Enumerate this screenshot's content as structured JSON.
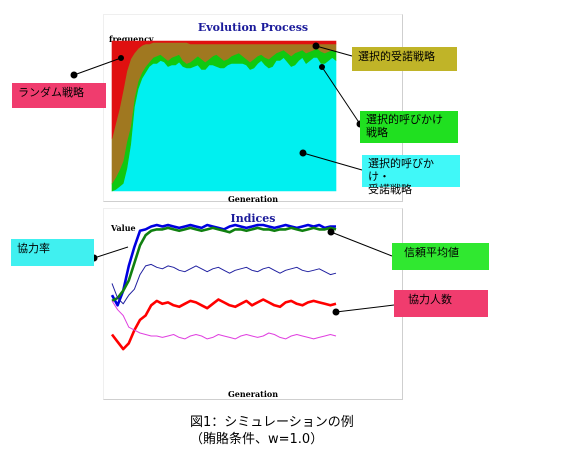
{
  "chart_data": [
    {
      "type": "area",
      "title": "Evolution Process",
      "ylabel": "frequency",
      "xlabel": "Generation",
      "ylim": [
        0,
        1
      ],
      "series": [
        {
          "name": "ランダム戦略",
          "color": "#e01010",
          "values": [
            0.65,
            0.55,
            0.45,
            0.33,
            0.2,
            0.12,
            0.08,
            0.05,
            0.03,
            0.02,
            0.02,
            0.01,
            0.01,
            0.01,
            0.01,
            0.01,
            0.01,
            0.01,
            0.01,
            0.01,
            0.01,
            0.02,
            0.02,
            0.02,
            0.02,
            0.02,
            0.02,
            0.02,
            0.02,
            0.02,
            0.02,
            0.02,
            0.02,
            0.02,
            0.02,
            0.02,
            0.02,
            0.02,
            0.02,
            0.02,
            0.02,
            0.02,
            0.02,
            0.02,
            0.02,
            0.02,
            0.02,
            0.02,
            0.02,
            0.02,
            0.02,
            0.02,
            0.02,
            0.02,
            0.02,
            0.02,
            0.02,
            0.02,
            0.02,
            0.02,
            0.02
          ]
        },
        {
          "name": "選択的受諾戦略",
          "color": "#a07820",
          "values": [
            0.3,
            0.36,
            0.41,
            0.47,
            0.47,
            0.45,
            0.3,
            0.22,
            0.18,
            0.15,
            0.12,
            0.1,
            0.09,
            0.08,
            0.1,
            0.12,
            0.1,
            0.09,
            0.08,
            0.12,
            0.14,
            0.12,
            0.1,
            0.08,
            0.1,
            0.12,
            0.1,
            0.08,
            0.07,
            0.09,
            0.11,
            0.1,
            0.08,
            0.07,
            0.06,
            0.08,
            0.1,
            0.12,
            0.1,
            0.08,
            0.07,
            0.09,
            0.1,
            0.08,
            0.06,
            0.05,
            0.04,
            0.06,
            0.08,
            0.06,
            0.05,
            0.04,
            0.06,
            0.05,
            0.04,
            0.03,
            0.05,
            0.06,
            0.05,
            0.04,
            0.05
          ]
        },
        {
          "name": "選択的呼びかけ戦略",
          "color": "#10c810",
          "values": [
            0.05,
            0.08,
            0.11,
            0.15,
            0.18,
            0.12,
            0.06,
            0.05,
            0.04,
            0.04,
            0.03,
            0.04,
            0.05,
            0.04,
            0.03,
            0.04,
            0.05,
            0.06,
            0.05,
            0.04,
            0.03,
            0.04,
            0.05,
            0.06,
            0.07,
            0.05,
            0.04,
            0.06,
            0.08,
            0.07,
            0.05,
            0.04,
            0.05,
            0.06,
            0.07,
            0.05,
            0.04,
            0.05,
            0.06,
            0.05,
            0.04,
            0.05,
            0.06,
            0.07,
            0.05,
            0.06,
            0.05,
            0.06,
            0.07,
            0.08,
            0.06,
            0.05,
            0.07,
            0.06,
            0.05,
            0.06,
            0.08,
            0.07,
            0.06,
            0.05,
            0.06
          ]
        },
        {
          "name": "選択的呼びかけ・受諾戦略",
          "color": "#00f0f0",
          "values": [
            0.0,
            0.01,
            0.03,
            0.05,
            0.15,
            0.31,
            0.56,
            0.68,
            0.75,
            0.79,
            0.83,
            0.85,
            0.85,
            0.87,
            0.86,
            0.83,
            0.84,
            0.84,
            0.86,
            0.83,
            0.82,
            0.82,
            0.83,
            0.84,
            0.81,
            0.81,
            0.84,
            0.84,
            0.83,
            0.82,
            0.82,
            0.84,
            0.85,
            0.85,
            0.85,
            0.85,
            0.84,
            0.81,
            0.82,
            0.85,
            0.87,
            0.84,
            0.82,
            0.83,
            0.87,
            0.87,
            0.89,
            0.86,
            0.83,
            0.84,
            0.87,
            0.89,
            0.85,
            0.87,
            0.89,
            0.89,
            0.85,
            0.85,
            0.87,
            0.89,
            0.87
          ]
        }
      ]
    },
    {
      "type": "line",
      "title": "Indices",
      "ylabel": "Value",
      "xlabel": "Generation",
      "ylim": [
        0,
        1
      ],
      "series": [
        {
          "name": "協力率",
          "color": "#0000e0",
          "values": [
            0.52,
            0.45,
            0.55,
            0.72,
            0.85,
            0.96,
            0.97,
            0.99,
            1.0,
            0.99,
            1.0,
            0.99,
            0.98,
            0.99,
            1.0,
            0.99,
            0.98,
            1.0,
            0.99,
            0.98,
            0.97,
            0.99,
            1.0,
            0.99,
            0.98,
            0.99,
            1.0,
            1.0,
            0.99,
            0.98,
            0.99,
            1.0,
            0.99,
            0.98,
            0.99,
            1.0,
            0.99,
            1.0,
            0.98,
            0.99,
            0.99
          ]
        },
        {
          "name": "信頼平均値",
          "color": "#108010",
          "values": [
            0.48,
            0.5,
            0.55,
            0.62,
            0.74,
            0.86,
            0.93,
            0.96,
            0.97,
            0.97,
            0.98,
            0.97,
            0.96,
            0.97,
            0.98,
            0.97,
            0.96,
            0.97,
            0.98,
            0.97,
            0.96,
            0.95,
            0.97,
            0.97,
            0.96,
            0.97,
            0.98,
            0.97,
            0.97,
            0.96,
            0.97,
            0.97,
            0.98,
            0.97,
            0.96,
            0.97,
            0.98,
            0.97,
            0.97,
            0.98,
            0.97
          ]
        },
        {
          "name": "協力人数",
          "color": "#ff0000",
          "values": [
            0.25,
            0.2,
            0.15,
            0.19,
            0.28,
            0.35,
            0.38,
            0.45,
            0.48,
            0.46,
            0.47,
            0.45,
            0.44,
            0.46,
            0.48,
            0.47,
            0.45,
            0.43,
            0.46,
            0.49,
            0.47,
            0.45,
            0.44,
            0.46,
            0.48,
            0.45,
            0.47,
            0.49,
            0.47,
            0.45,
            0.44,
            0.47,
            0.48,
            0.46,
            0.45,
            0.47,
            0.48,
            0.47,
            0.46,
            0.45,
            0.46
          ]
        },
        {
          "name": "",
          "color": "#2020a0",
          "values": [
            0.6,
            0.5,
            0.46,
            0.52,
            0.56,
            0.66,
            0.72,
            0.73,
            0.71,
            0.7,
            0.72,
            0.71,
            0.69,
            0.68,
            0.7,
            0.72,
            0.7,
            0.68,
            0.7,
            0.71,
            0.69,
            0.67,
            0.69,
            0.7,
            0.71,
            0.69,
            0.68,
            0.7,
            0.71,
            0.69,
            0.67,
            0.69,
            0.7,
            0.71,
            0.69,
            0.68,
            0.69,
            0.7,
            0.68,
            0.66,
            0.67
          ]
        },
        {
          "name": "",
          "color": "#e040e0",
          "values": [
            0.48,
            0.42,
            0.38,
            0.3,
            0.28,
            0.26,
            0.25,
            0.24,
            0.24,
            0.23,
            0.24,
            0.25,
            0.23,
            0.22,
            0.24,
            0.25,
            0.24,
            0.22,
            0.23,
            0.25,
            0.24,
            0.23,
            0.22,
            0.24,
            0.25,
            0.24,
            0.23,
            0.24,
            0.26,
            0.25,
            0.23,
            0.22,
            0.24,
            0.25,
            0.24,
            0.23,
            0.22,
            0.23,
            0.24,
            0.25,
            0.24
          ]
        }
      ]
    }
  ],
  "annotations": {
    "random": "ランダム戦略",
    "selective_accept": "選択的受諾戦略",
    "selective_call_l1": "選択的呼びかけ",
    "selective_call_l2": "戦略",
    "selective_both_l1": "選択的呼びかけ・",
    "selective_both_l2": "受諾戦略",
    "coop_rate": "協力率",
    "trust_avg": "信頼平均値",
    "coop_count": "協力人数"
  },
  "caption": {
    "line1": "図1：シミュレーションの例",
    "line2": "（賄賂条件、w=1.0）"
  },
  "colors": {
    "random_bg": "#f03c6e",
    "accept_bg": "#c0b428",
    "call_bg": "#20e020",
    "both_bg": "#40f8f8",
    "coop_rate_bg": "#40f0f0",
    "trust_bg": "#30e830",
    "coop_count_bg": "#f03c6e"
  }
}
